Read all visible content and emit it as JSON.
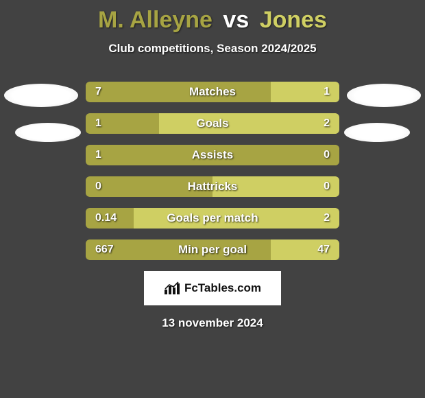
{
  "title": {
    "player1": "M. Alleyne",
    "vs": "vs",
    "player2": "Jones",
    "player1_color": "#a7a443",
    "player2_color": "#cfcf63"
  },
  "subtitle": "Club competitions, Season 2024/2025",
  "bar_style": {
    "height": 30,
    "gap": 16,
    "border_radius": 6,
    "track_color": "#a7a443",
    "fill_left_color": "#a7a443",
    "fill_right_color": "#cfcf63",
    "label_fontsize": 17,
    "value_fontsize": 16
  },
  "stats": [
    {
      "label": "Matches",
      "left_val": "7",
      "right_val": "1",
      "left_pct": 73,
      "right_pct": 27
    },
    {
      "label": "Goals",
      "left_val": "1",
      "right_val": "2",
      "left_pct": 29,
      "right_pct": 71
    },
    {
      "label": "Assists",
      "left_val": "1",
      "right_val": "0",
      "left_pct": 100,
      "right_pct": 0
    },
    {
      "label": "Hattricks",
      "left_val": "0",
      "right_val": "0",
      "left_pct": 50,
      "right_pct": 50
    },
    {
      "label": "Goals per match",
      "left_val": "0.14",
      "right_val": "2",
      "left_pct": 19,
      "right_pct": 81
    },
    {
      "label": "Min per goal",
      "left_val": "667",
      "right_val": "47",
      "left_pct": 73,
      "right_pct": 27
    }
  ],
  "logo": {
    "text": "FcTables.com"
  },
  "date": "13 november 2024",
  "background_color": "#424242"
}
